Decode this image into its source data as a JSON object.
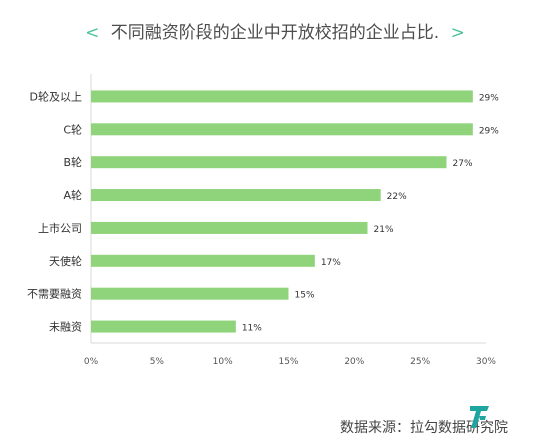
{
  "title": {
    "left_chevron": "<",
    "text": "不同融资阶段的企业中开放校招的企业占比.",
    "right_chevron": ">"
  },
  "source": "数据来源：拉勾数据研究院",
  "colors": {
    "bar": "#8fd47a",
    "accent": "#4cc49a",
    "axis": "#d9d9d9",
    "text": "#333333"
  },
  "chart_data": {
    "type": "bar",
    "orientation": "horizontal",
    "categories": [
      "D轮及以上",
      "C轮",
      "B轮",
      "A轮",
      "上市公司",
      "天使轮",
      "不需要融资",
      "未融资"
    ],
    "values": [
      29,
      29,
      27,
      22,
      21,
      17,
      15,
      11
    ],
    "value_labels": [
      "29%",
      "29%",
      "27%",
      "22%",
      "21%",
      "17%",
      "15%",
      "11%"
    ],
    "x_ticks": [
      "0%",
      "5%",
      "10%",
      "15%",
      "20%",
      "25%",
      "30%"
    ],
    "xlim": [
      0,
      30
    ],
    "grid": false,
    "legend": "none"
  }
}
